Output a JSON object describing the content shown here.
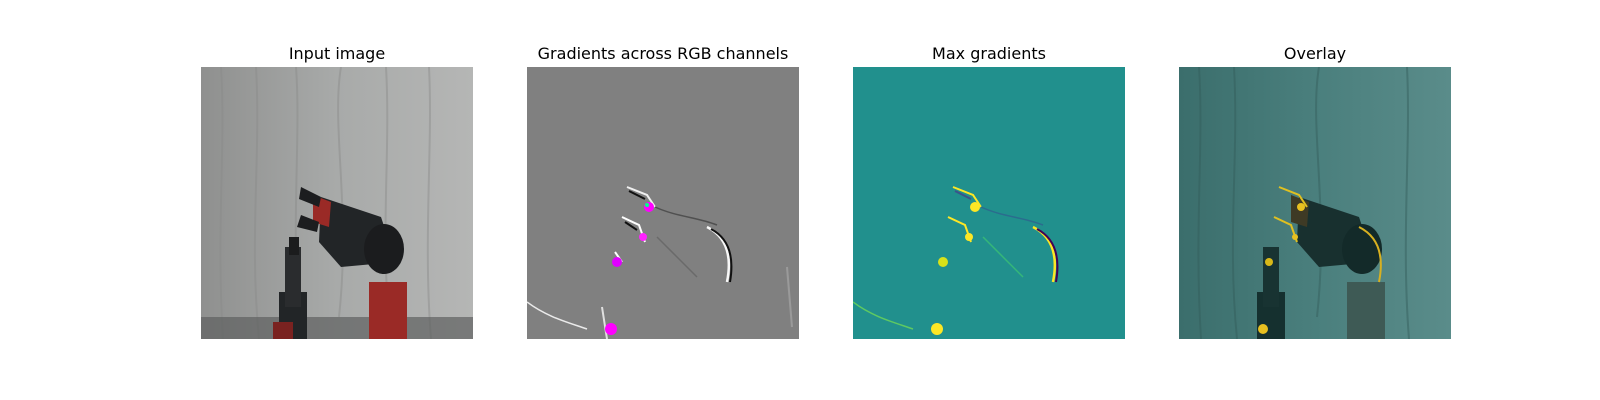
{
  "panels": [
    {
      "title": "Input image"
    },
    {
      "title": "Gradients across RGB channels"
    },
    {
      "title": "Max gradients"
    },
    {
      "title": "Overlay"
    }
  ],
  "colors": {
    "curtain": "#9ea09f",
    "robot_black": "#222527",
    "robot_red": "#9a2a26",
    "gradient_background": "#808080",
    "max_gradient_background": "#21908d",
    "max_gradient_highlight": "#fde725",
    "gradient_highlight": "#ff00ff",
    "overlay_tint": "#3c7a78"
  }
}
